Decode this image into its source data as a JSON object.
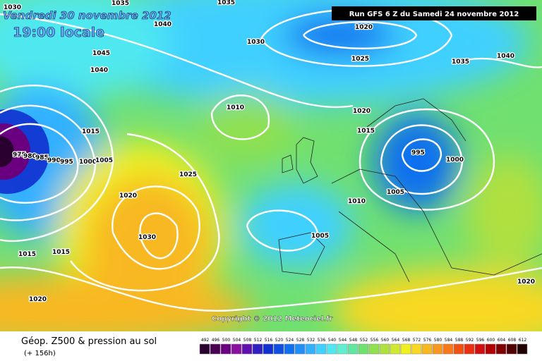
{
  "header": {
    "date": "Vendredi 30 novembre 2012",
    "time": "19:00 locale"
  },
  "run": "Run GFS 6 Z du Samedi 24 novembre 2012",
  "copyright": "Copyright © 2012 Meteociel.fr",
  "isobar_labels": [
    "1030",
    "1035",
    "1035",
    "1040",
    "1045",
    "1040",
    "1030",
    "1020",
    "1025",
    "1035",
    "1040",
    "1010",
    "1020",
    "1015",
    "1015",
    "995",
    "1000",
    "975",
    "980",
    "985",
    "990",
    "995",
    "1000",
    "1005",
    "1025",
    "1020",
    "1005",
    "1010",
    "1030",
    "1005",
    "1015",
    "1015",
    "1020",
    "1020"
  ],
  "legend": {
    "title": "Géop. Z500 & pression au sol",
    "lead": "(+ 156h)",
    "scale_labels": [
      492,
      496,
      500,
      504,
      508,
      512,
      516,
      520,
      524,
      528,
      532,
      536,
      540,
      544,
      548,
      552,
      556,
      560,
      564,
      568,
      572,
      576,
      580,
      584,
      588,
      592,
      596,
      600,
      604,
      608,
      612
    ],
    "scale_colors": [
      "#2a0030",
      "#4a0050",
      "#6a0080",
      "#8a10a0",
      "#6010b0",
      "#3020c0",
      "#1030d0",
      "#1050e0",
      "#1070f0",
      "#2090f8",
      "#30b0ff",
      "#40d0ff",
      "#50e8f0",
      "#60f0d0",
      "#60e8a0",
      "#70e070",
      "#90e050",
      "#b0e040",
      "#d0e830",
      "#f0f020",
      "#f8d820",
      "#f8b820",
      "#f89820",
      "#f87818",
      "#f05010",
      "#e83010",
      "#d01010",
      "#b00000",
      "#800000",
      "#500000",
      "#200000"
    ]
  }
}
